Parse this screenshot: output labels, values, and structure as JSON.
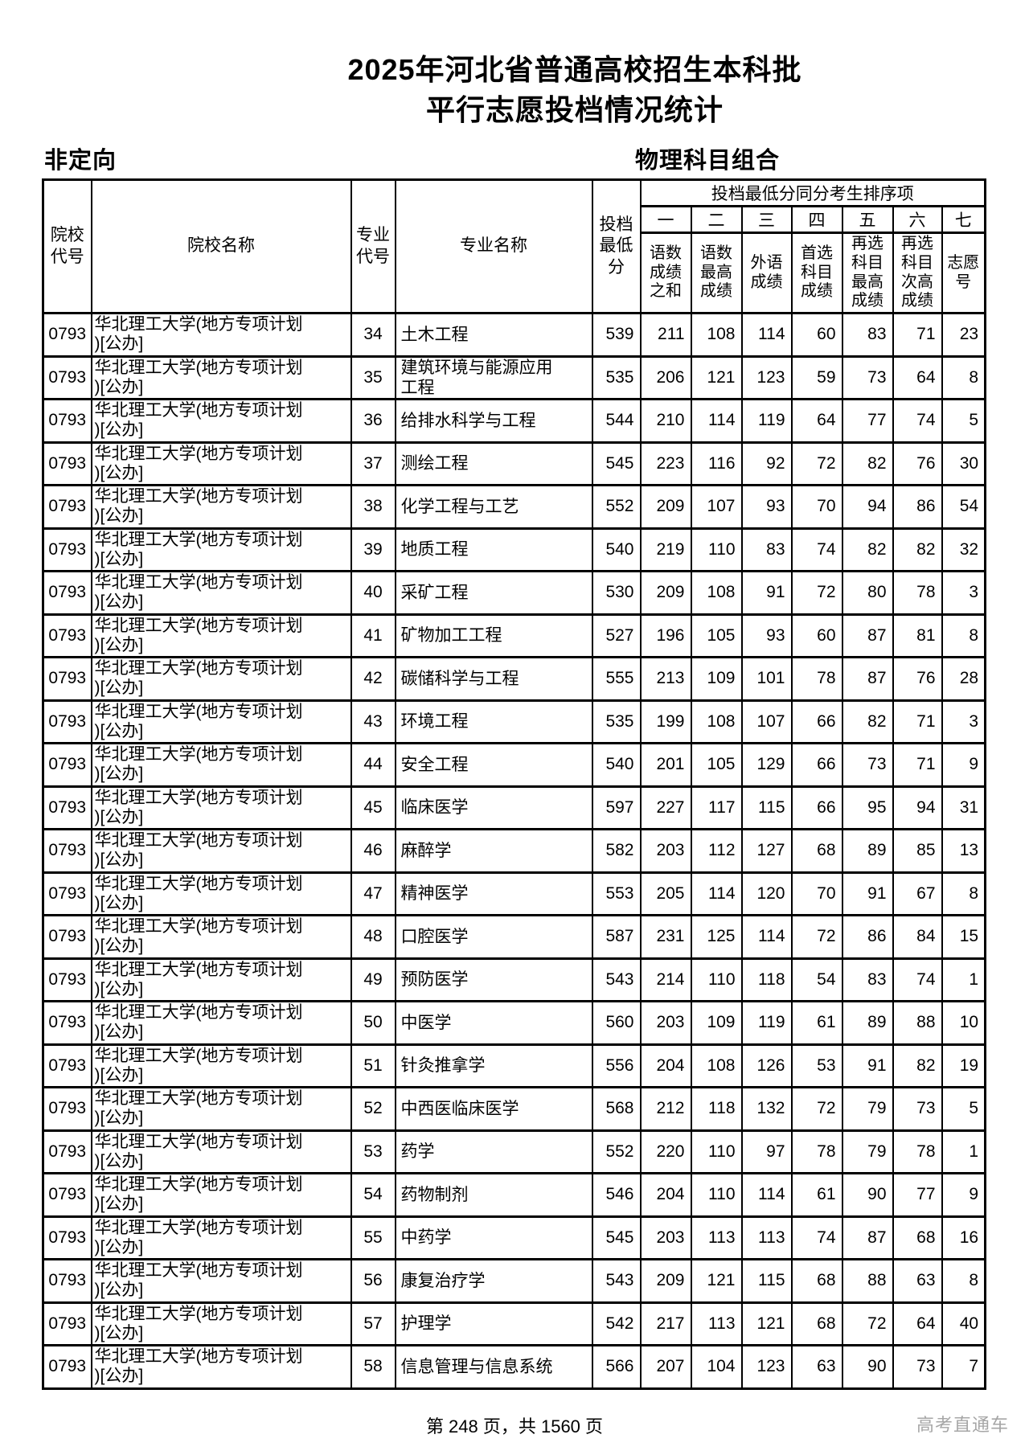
{
  "title": {
    "line1": "2025年河北省普通高校招生本科批",
    "line2": "平行志愿投档情况统计"
  },
  "labels": {
    "left": "非定向",
    "right": "物理科目组合"
  },
  "table": {
    "headers": {
      "college_code": "院校\n代号",
      "college_name": "院校名称",
      "major_code": "专业\n代号",
      "major_name": "专业名称",
      "min_score": "投档\n最低\n分",
      "tiebreak": "投档最低分同分考生排序项"
    },
    "tiebreak_numerals": [
      "一",
      "二",
      "三",
      "四",
      "五",
      "六",
      "七"
    ],
    "tiebreak_sublabels": [
      "语数\n成绩\n之和",
      "语数\n最高\n成绩",
      "外语\n成绩",
      "首选\n科目\n成绩",
      "再选\n科目\n最高\n成绩",
      "再选\n科目\n次高\n成绩",
      "志愿\n号"
    ],
    "rows": [
      [
        "0793",
        "华北理工大学(地方专项计划\n)[公办]",
        "34",
        "土木工程",
        "539",
        "211",
        "108",
        "114",
        "60",
        "83",
        "71",
        "23"
      ],
      [
        "0793",
        "华北理工大学(地方专项计划\n)[公办]",
        "35",
        "建筑环境与能源应用\n工程",
        "535",
        "206",
        "121",
        "123",
        "59",
        "73",
        "64",
        "8"
      ],
      [
        "0793",
        "华北理工大学(地方专项计划\n)[公办]",
        "36",
        "给排水科学与工程",
        "544",
        "210",
        "114",
        "119",
        "64",
        "77",
        "74",
        "5"
      ],
      [
        "0793",
        "华北理工大学(地方专项计划\n)[公办]",
        "37",
        "测绘工程",
        "545",
        "223",
        "116",
        "92",
        "72",
        "82",
        "76",
        "30"
      ],
      [
        "0793",
        "华北理工大学(地方专项计划\n)[公办]",
        "38",
        "化学工程与工艺",
        "552",
        "209",
        "107",
        "93",
        "70",
        "94",
        "86",
        "54"
      ],
      [
        "0793",
        "华北理工大学(地方专项计划\n)[公办]",
        "39",
        "地质工程",
        "540",
        "219",
        "110",
        "83",
        "74",
        "82",
        "82",
        "32"
      ],
      [
        "0793",
        "华北理工大学(地方专项计划\n)[公办]",
        "40",
        "采矿工程",
        "530",
        "209",
        "108",
        "91",
        "72",
        "80",
        "78",
        "3"
      ],
      [
        "0793",
        "华北理工大学(地方专项计划\n)[公办]",
        "41",
        "矿物加工工程",
        "527",
        "196",
        "105",
        "93",
        "60",
        "87",
        "81",
        "8"
      ],
      [
        "0793",
        "华北理工大学(地方专项计划\n)[公办]",
        "42",
        "碳储科学与工程",
        "555",
        "213",
        "109",
        "101",
        "78",
        "87",
        "76",
        "28"
      ],
      [
        "0793",
        "华北理工大学(地方专项计划\n)[公办]",
        "43",
        "环境工程",
        "535",
        "199",
        "108",
        "107",
        "66",
        "82",
        "71",
        "3"
      ],
      [
        "0793",
        "华北理工大学(地方专项计划\n)[公办]",
        "44",
        "安全工程",
        "540",
        "201",
        "105",
        "129",
        "66",
        "73",
        "71",
        "9"
      ],
      [
        "0793",
        "华北理工大学(地方专项计划\n)[公办]",
        "45",
        "临床医学",
        "597",
        "227",
        "117",
        "115",
        "66",
        "95",
        "94",
        "31"
      ],
      [
        "0793",
        "华北理工大学(地方专项计划\n)[公办]",
        "46",
        "麻醉学",
        "582",
        "203",
        "112",
        "127",
        "68",
        "89",
        "85",
        "13"
      ],
      [
        "0793",
        "华北理工大学(地方专项计划\n)[公办]",
        "47",
        "精神医学",
        "553",
        "205",
        "114",
        "120",
        "70",
        "91",
        "67",
        "8"
      ],
      [
        "0793",
        "华北理工大学(地方专项计划\n)[公办]",
        "48",
        "口腔医学",
        "587",
        "231",
        "125",
        "114",
        "72",
        "86",
        "84",
        "15"
      ],
      [
        "0793",
        "华北理工大学(地方专项计划\n)[公办]",
        "49",
        "预防医学",
        "543",
        "214",
        "110",
        "118",
        "54",
        "83",
        "74",
        "1"
      ],
      [
        "0793",
        "华北理工大学(地方专项计划\n)[公办]",
        "50",
        "中医学",
        "560",
        "203",
        "109",
        "119",
        "61",
        "89",
        "88",
        "10"
      ],
      [
        "0793",
        "华北理工大学(地方专项计划\n)[公办]",
        "51",
        "针灸推拿学",
        "556",
        "204",
        "108",
        "126",
        "53",
        "91",
        "82",
        "19"
      ],
      [
        "0793",
        "华北理工大学(地方专项计划\n)[公办]",
        "52",
        "中西医临床医学",
        "568",
        "212",
        "118",
        "132",
        "72",
        "79",
        "73",
        "5"
      ],
      [
        "0793",
        "华北理工大学(地方专项计划\n)[公办]",
        "53",
        "药学",
        "552",
        "220",
        "110",
        "97",
        "78",
        "79",
        "78",
        "1"
      ],
      [
        "0793",
        "华北理工大学(地方专项计划\n)[公办]",
        "54",
        "药物制剂",
        "546",
        "204",
        "110",
        "114",
        "61",
        "90",
        "77",
        "9"
      ],
      [
        "0793",
        "华北理工大学(地方专项计划\n)[公办]",
        "55",
        "中药学",
        "545",
        "203",
        "113",
        "113",
        "74",
        "87",
        "68",
        "16"
      ],
      [
        "0793",
        "华北理工大学(地方专项计划\n)[公办]",
        "56",
        "康复治疗学",
        "543",
        "209",
        "121",
        "115",
        "68",
        "88",
        "63",
        "8"
      ],
      [
        "0793",
        "华北理工大学(地方专项计划\n)[公办]",
        "57",
        "护理学",
        "542",
        "217",
        "113",
        "121",
        "68",
        "72",
        "64",
        "40"
      ],
      [
        "0793",
        "华北理工大学(地方专项计划\n)[公办]",
        "58",
        "信息管理与信息系统",
        "566",
        "207",
        "104",
        "123",
        "63",
        "90",
        "73",
        "7"
      ]
    ]
  },
  "footer": {
    "page_info": "第 248 页，共 1560 页"
  },
  "watermark": "高考直通车"
}
